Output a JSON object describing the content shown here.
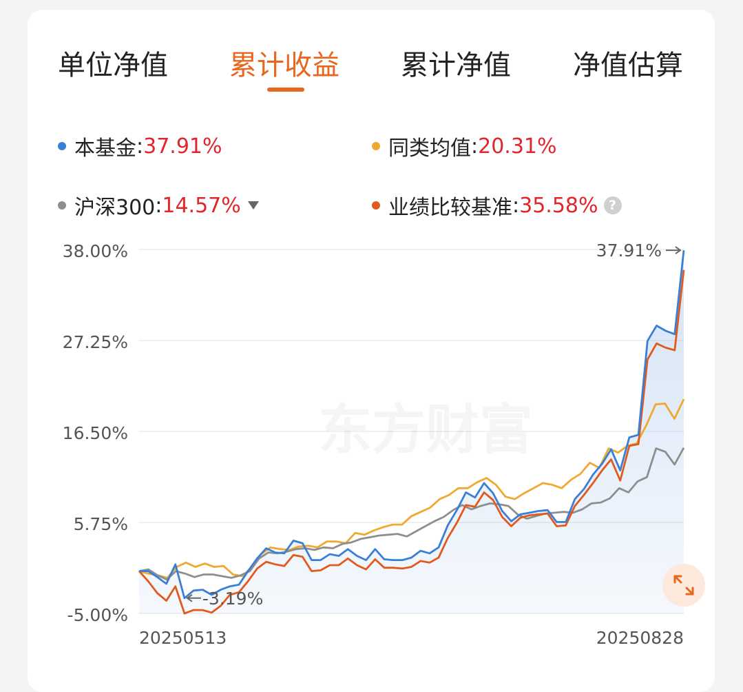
{
  "tabs": [
    {
      "label": "单位净值"
    },
    {
      "label": "累计收益"
    },
    {
      "label": "累计净值"
    },
    {
      "label": "净值估算"
    }
  ],
  "active_tab": 1,
  "legend": [
    {
      "name": "本基金",
      "value": "37.91%",
      "color": "#3a7fd6"
    },
    {
      "name": "同类均值",
      "value": "20.31%",
      "color": "#f0a830"
    },
    {
      "name": "沪深300",
      "value": "14.57%",
      "color": "#8e8e8e"
    },
    {
      "name": "业绩比较基准",
      "value": "35.58%",
      "color": "#e15a1c"
    }
  ],
  "watermark": "东方财富",
  "colors": {
    "accent": "#e8661e",
    "negative": "#e0252b"
  },
  "chart_data": {
    "type": "line",
    "yticks": [
      "38.00%",
      "27.25%",
      "16.50%",
      "5.75%",
      "-5.00%"
    ],
    "ylim": [
      -5.0,
      38.0
    ],
    "x_start_label": "20250513",
    "x_end_label": "20250828",
    "annotations": {
      "max": "37.91%",
      "min": "-3.19%"
    },
    "series": [
      {
        "name": "本基金",
        "color": "#3a7fd6",
        "values": [
          0.0,
          0.0,
          -0.7,
          -1.5,
          0.8,
          -3.19,
          -2.3,
          -2.2,
          -2.8,
          -2.2,
          -1.8,
          -1.6,
          0.0,
          1.5,
          2.7,
          2.2,
          2.1,
          3.6,
          3.3,
          1.3,
          1.3,
          2.0,
          1.8,
          2.6,
          1.8,
          1.3,
          2.6,
          1.4,
          1.3,
          1.3,
          1.6,
          2.4,
          2.1,
          2.8,
          5.4,
          7.2,
          9.3,
          8.7,
          10.4,
          9.2,
          7.1,
          5.9,
          6.7,
          6.9,
          7.1,
          7.2,
          5.8,
          5.8,
          8.5,
          9.7,
          11.4,
          12.7,
          14.4,
          11.9,
          15.8,
          16.1,
          27.2,
          29.0,
          28.4,
          28.0,
          37.91
        ]
      },
      {
        "name": "同类均值",
        "color": "#f0a830",
        "values": [
          0.0,
          -0.3,
          -0.5,
          -0.8,
          0.5,
          1.0,
          0.5,
          0.9,
          0.5,
          0.6,
          -0.4,
          -0.6,
          0.5,
          2.0,
          2.8,
          2.6,
          2.5,
          2.9,
          3.0,
          2.8,
          3.5,
          3.5,
          3.3,
          4.5,
          4.3,
          4.8,
          5.2,
          5.5,
          5.5,
          6.5,
          7.0,
          7.5,
          8.5,
          9.0,
          9.8,
          9.8,
          10.5,
          11.0,
          10.2,
          8.8,
          8.5,
          9.2,
          9.8,
          10.4,
          10.2,
          9.8,
          10.8,
          11.5,
          12.8,
          12.2,
          14.5,
          14.0,
          14.8,
          15.1,
          17.2,
          19.7,
          19.8,
          18.0,
          20.31
        ]
      },
      {
        "name": "沪深300",
        "color": "#8e8e8e",
        "values": [
          0.0,
          0.2,
          -0.5,
          -1.0,
          0.0,
          -0.3,
          -0.7,
          -0.4,
          -0.4,
          -0.6,
          -0.8,
          -0.5,
          0.0,
          1.5,
          2.2,
          2.1,
          2.3,
          2.6,
          2.7,
          2.5,
          2.8,
          2.7,
          3.2,
          3.4,
          3.8,
          4.0,
          4.2,
          4.3,
          4.4,
          4.1,
          4.7,
          5.3,
          5.9,
          6.4,
          7.2,
          7.8,
          7.3,
          7.7,
          8.0,
          7.9,
          7.7,
          6.7,
          6.2,
          6.5,
          6.8,
          6.9,
          7.0,
          6.9,
          7.3,
          8.0,
          8.1,
          8.6,
          9.8,
          9.3,
          10.6,
          11.1,
          14.5,
          14.1,
          12.6,
          14.57
        ]
      },
      {
        "name": "业绩比较基准",
        "color": "#e15a1c",
        "values": [
          0.0,
          -1.2,
          -2.6,
          -3.5,
          -1.8,
          -5.0,
          -4.6,
          -4.6,
          -4.9,
          -4.1,
          -2.8,
          -2.5,
          -1.2,
          0.3,
          1.1,
          0.8,
          0.6,
          1.9,
          1.7,
          0.0,
          0.1,
          0.7,
          0.7,
          1.5,
          0.7,
          0.2,
          1.4,
          0.4,
          0.4,
          0.3,
          0.5,
          1.2,
          1.0,
          1.6,
          3.9,
          5.7,
          7.8,
          7.6,
          9.3,
          8.4,
          6.4,
          5.3,
          6.3,
          6.6,
          6.7,
          6.8,
          5.3,
          5.4,
          7.7,
          9.0,
          10.4,
          11.9,
          13.2,
          10.7,
          14.8,
          15.0,
          25.0,
          26.9,
          26.4,
          26.1,
          35.58
        ]
      }
    ]
  }
}
